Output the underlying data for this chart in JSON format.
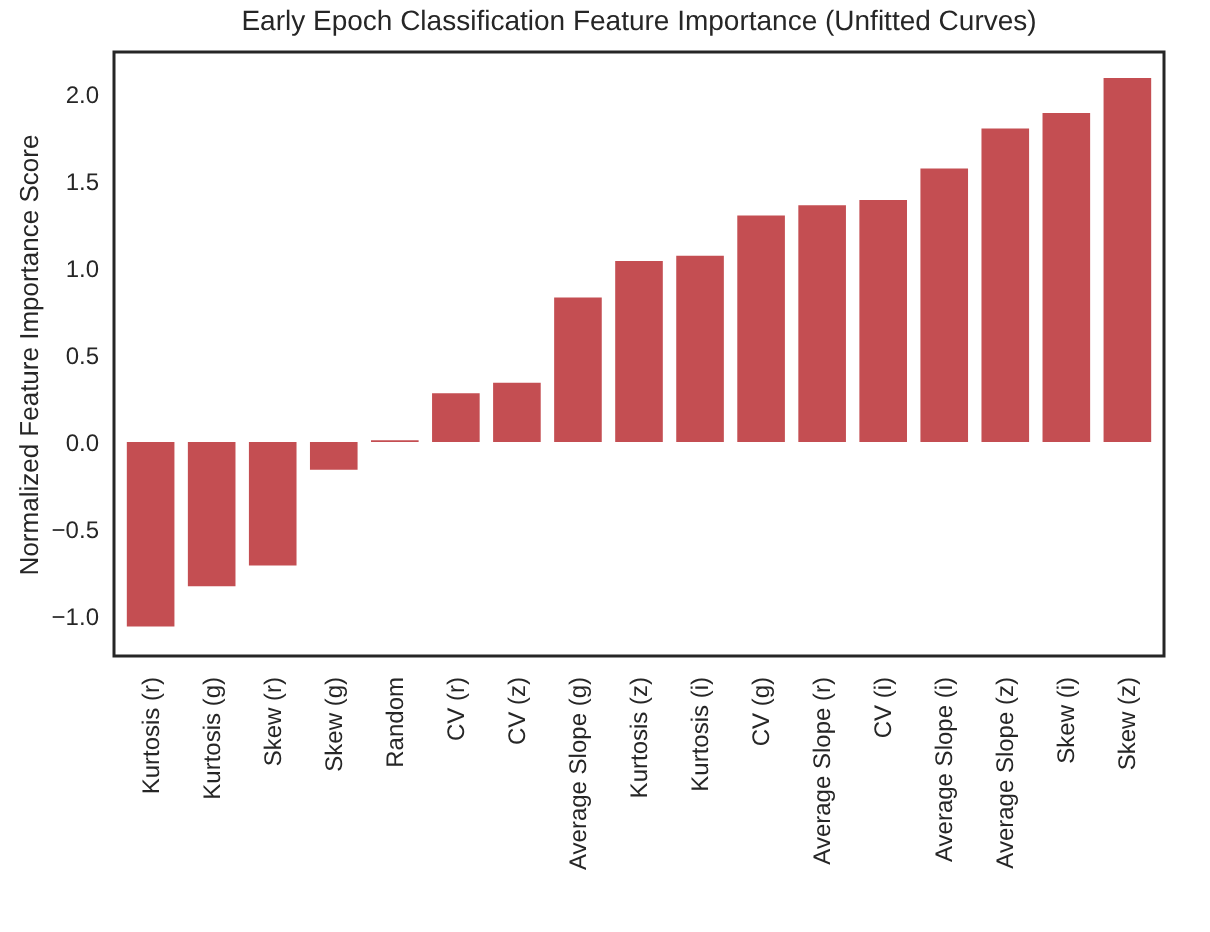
{
  "chart_data": {
    "type": "bar",
    "title": "Early Epoch Classification Feature Importance (Unfitted Curves)",
    "ylabel": "Normalized Feature Importance Score",
    "categories": [
      "Kurtosis (r)",
      "Kurtosis (g)",
      "Skew (r)",
      "Skew (g)",
      "Random",
      "CV (r)",
      "CV (z)",
      "Average Slope (g)",
      "Kurtosis (z)",
      "Kurtosis  (i)",
      "CV (g)",
      "Average Slope (r)",
      "CV (i)",
      "Average Slope (i)",
      "Average Slope (z)",
      "Skew (i)",
      "Skew (z)"
    ],
    "values": [
      -1.06,
      -0.83,
      -0.71,
      -0.16,
      0.01,
      0.28,
      0.34,
      0.83,
      1.04,
      1.07,
      1.3,
      1.36,
      1.39,
      1.57,
      1.8,
      1.89,
      2.09
    ],
    "color": "#c44e52",
    "ylim": [
      -1.23,
      2.24
    ],
    "yticks": [
      {
        "value": -1,
        "label": "−1.0"
      },
      {
        "value": -0.5,
        "label": "−0.5"
      },
      {
        "value": 0,
        "label": "0.0"
      },
      {
        "value": 0.5,
        "label": "0.5"
      },
      {
        "value": 1,
        "label": "1.0"
      },
      {
        "value": 1.5,
        "label": "1.5"
      },
      {
        "value": 2,
        "label": "2.0"
      }
    ],
    "grid": false
  }
}
